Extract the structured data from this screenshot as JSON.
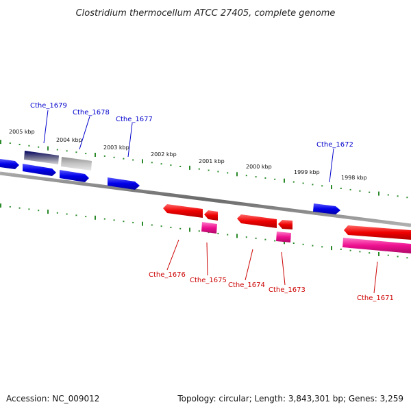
{
  "title": "Clostridium thermocellum ATCC 27405, complete genome",
  "accession": "Accession: NC_009012",
  "topology": "Topology: circular; Length: 3,843,301 bp; Genes: 3,259",
  "colors": {
    "forward_gene": "#0000e8",
    "reverse_gene": "#ee0000",
    "reverse_pink": "#ee1090",
    "forward_label": "#0000cc",
    "reverse_label": "#cc0000",
    "tick": "#2a8a2a",
    "backbone": "#808080"
  },
  "kbp_labels": [
    "2005 kbp",
    "2004 kbp",
    "2003 kbp",
    "2002 kbp",
    "2001 kbp",
    "2000 kbp",
    "1999 kbp",
    "1998 kbp"
  ],
  "forward_labels": [
    "Cthe_1679",
    "Cthe_1678",
    "Cthe_1677",
    "Cthe_1672"
  ],
  "reverse_labels": [
    "Cthe_1676",
    "Cthe_1675",
    "Cthe_1674",
    "Cthe_1673",
    "Cthe_1671"
  ]
}
